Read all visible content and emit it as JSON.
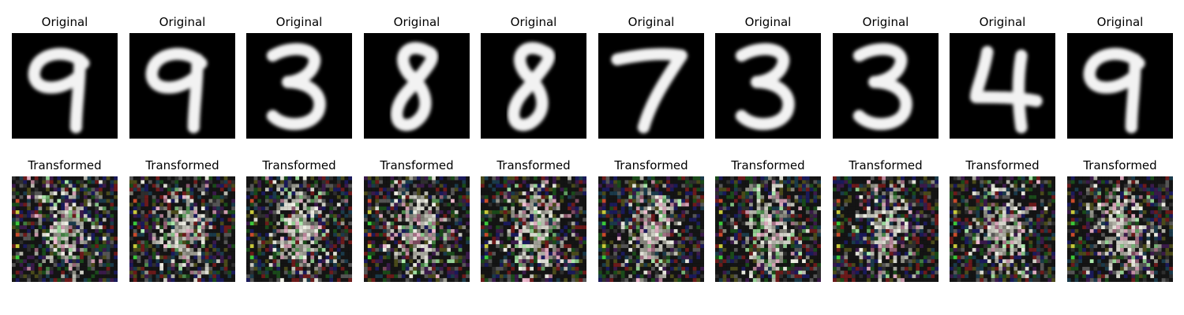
{
  "rows": [
    {
      "name": "original-row",
      "panels": [
        {
          "title": "Original",
          "digit": "9"
        },
        {
          "title": "Original",
          "digit": "9"
        },
        {
          "title": "Original",
          "digit": "3"
        },
        {
          "title": "Original",
          "digit": "8"
        },
        {
          "title": "Original",
          "digit": "8"
        },
        {
          "title": "Original",
          "digit": "7"
        },
        {
          "title": "Original",
          "digit": "3"
        },
        {
          "title": "Original",
          "digit": "3"
        },
        {
          "title": "Original",
          "digit": "4"
        },
        {
          "title": "Original",
          "digit": "9"
        }
      ]
    },
    {
      "name": "transformed-row",
      "panels": [
        {
          "title": "Transformed"
        },
        {
          "title": "Transformed"
        },
        {
          "title": "Transformed"
        },
        {
          "title": "Transformed"
        },
        {
          "title": "Transformed"
        },
        {
          "title": "Transformed"
        },
        {
          "title": "Transformed"
        },
        {
          "title": "Transformed"
        },
        {
          "title": "Transformed"
        },
        {
          "title": "Transformed"
        }
      ]
    }
  ]
}
